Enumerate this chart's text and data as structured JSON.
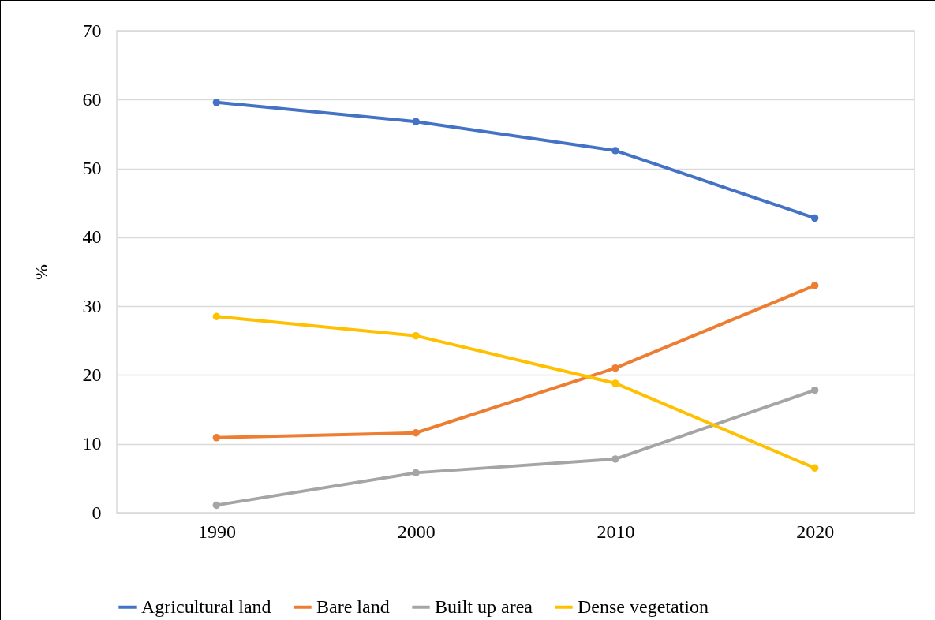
{
  "chart_data": {
    "type": "line",
    "ylabel": "%",
    "categories": [
      "1990",
      "2000",
      "2010",
      "2020"
    ],
    "series": [
      {
        "name": "Agricultural land",
        "color": "#4472c4",
        "values": [
          59.6,
          56.8,
          52.6,
          42.8
        ]
      },
      {
        "name": "Bare land",
        "color": "#ed7d31",
        "values": [
          10.9,
          11.6,
          21.0,
          33.0
        ]
      },
      {
        "name": "Built up area",
        "color": "#a5a5a5",
        "values": [
          1.1,
          5.8,
          7.8,
          17.8
        ]
      },
      {
        "name": "Dense vegetation",
        "color": "#ffc000",
        "values": [
          28.5,
          25.7,
          18.8,
          6.5
        ]
      }
    ],
    "ylim": [
      0,
      70
    ],
    "yticks": [
      0,
      10,
      20,
      30,
      40,
      50,
      60,
      70
    ],
    "grid": "y",
    "legend": "bottom",
    "marker": "circle",
    "line_style": "solid"
  }
}
